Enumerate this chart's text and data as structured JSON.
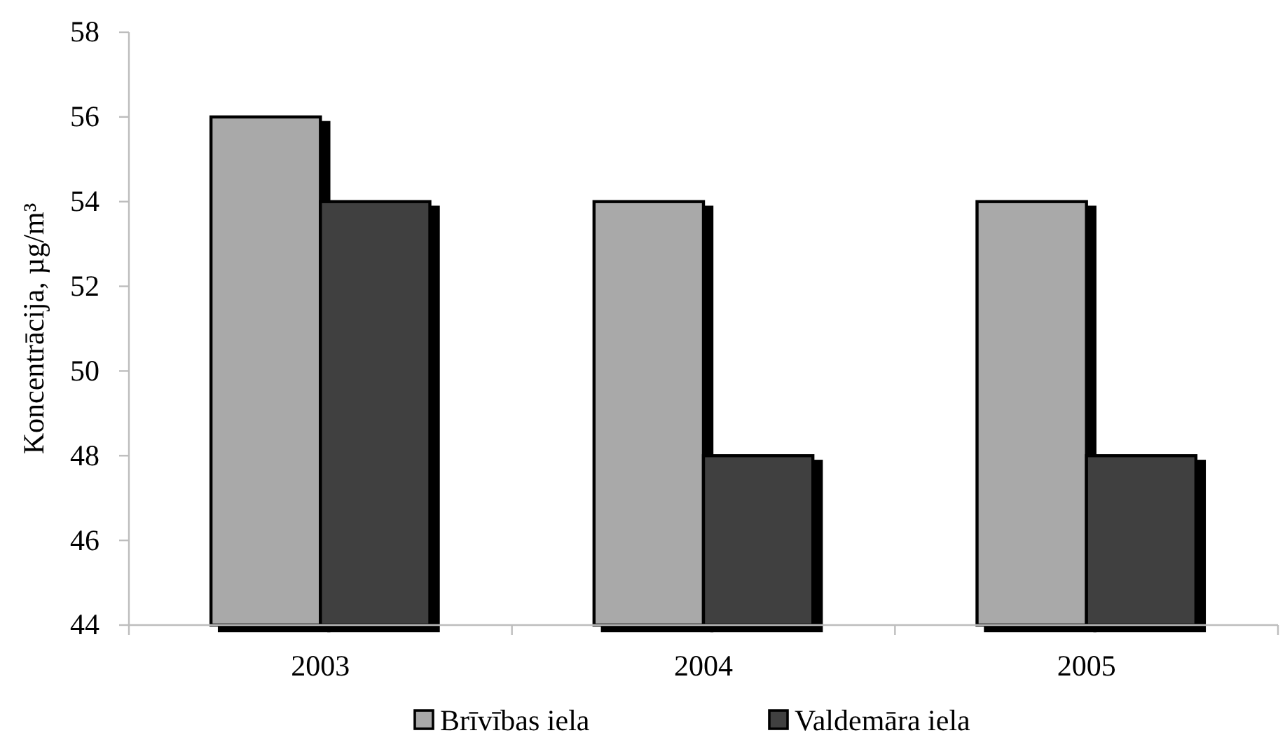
{
  "chart_data": {
    "type": "bar",
    "ylabel": "Koncentrācija, µg/m³",
    "categories": [
      "2003",
      "2004",
      "2005"
    ],
    "series": [
      {
        "name": "Brīvības iela",
        "color": "#a9a9a9",
        "values": [
          56,
          54,
          54
        ]
      },
      {
        "name": "Valdemāra iela",
        "color": "#404040",
        "values": [
          54,
          48,
          48
        ]
      }
    ],
    "ylim": [
      44,
      58
    ],
    "yticks": [
      44,
      46,
      48,
      50,
      52,
      54,
      56,
      58
    ],
    "grid": false,
    "legend": "bottom"
  }
}
